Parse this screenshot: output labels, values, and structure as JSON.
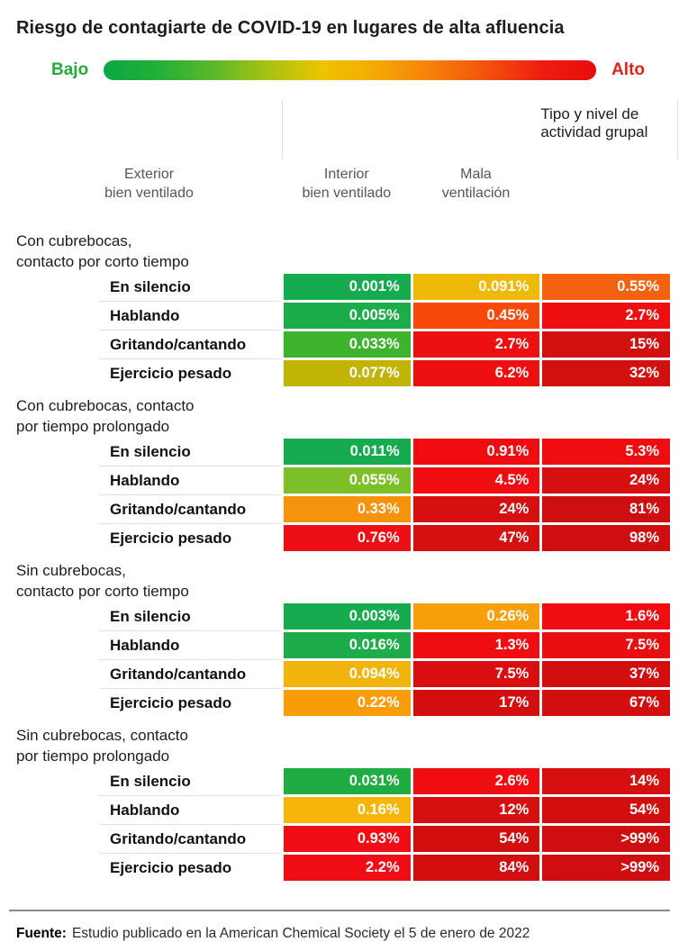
{
  "chart_data": {
    "type": "heatmap",
    "title": "Riesgo de contagiarte de COVID-19 en lugares de alta afluencia",
    "row_axis_label": "Tipo y nivel de actividad grupal",
    "columns": [
      "Exterior\nbien ventilado",
      "Interior\nbien ventilado",
      "Mala\nventilación"
    ],
    "legend": {
      "low_label": "Bajo",
      "high_label": "Alto",
      "low_color": "#23ab3c",
      "high_color": "#e0231a",
      "gradient": [
        "#0aa845",
        "#23af38",
        "#5bb82a",
        "#a8c213",
        "#eec400",
        "#f4a904",
        "#f57f0a",
        "#f3520d",
        "#ee1d10",
        "#e60d0d"
      ]
    },
    "sections": [
      {
        "header_lines": [
          "Con cubrebocas,",
          "contacto por corto tiempo"
        ],
        "rows": [
          {
            "label": "En silencio",
            "values": [
              "0.001%",
              "0.091%",
              "0.55%"
            ],
            "colors": [
              "#17ab4f",
              "#efba07",
              "#f4610f"
            ]
          },
          {
            "label": "Hablando",
            "values": [
              "0.005%",
              "0.45%",
              "2.7%"
            ],
            "colors": [
              "#1cac49",
              "#f8490b",
              "#ee1010"
            ]
          },
          {
            "label": "Gritando/cantando",
            "values": [
              "0.033%",
              "2.7%",
              "15%"
            ],
            "colors": [
              "#3eb42e",
              "#ee0f10",
              "#d31010"
            ]
          },
          {
            "label": "Ejercicio pesado",
            "values": [
              "0.077%",
              "6.2%",
              "32%"
            ],
            "colors": [
              "#c2b307",
              "#ee0f10",
              "#d31010"
            ]
          }
        ]
      },
      {
        "header_lines": [
          "Con cubrebocas, contacto",
          "por tiempo prolongado"
        ],
        "rows": [
          {
            "label": "En silencio",
            "values": [
              "0.011%",
              "0.91%",
              "5.3%"
            ],
            "colors": [
              "#17ab4f",
              "#f00d12",
              "#f00d12"
            ]
          },
          {
            "label": "Hablando",
            "values": [
              "0.055%",
              "4.5%",
              "24%"
            ],
            "colors": [
              "#7cbf28",
              "#f00d12",
              "#d60f10"
            ]
          },
          {
            "label": "Gritando/cantando",
            "values": [
              "0.33%",
              "24%",
              "81%"
            ],
            "colors": [
              "#f6930c",
              "#d60f10",
              "#cf0e0f"
            ]
          },
          {
            "label": "Ejercicio pesado",
            "values": [
              "0.76%",
              "47%",
              "98%"
            ],
            "colors": [
              "#ee0f16",
              "#d60f10",
              "#cf0e0f"
            ]
          }
        ]
      },
      {
        "header_lines": [
          "Sin cubrebocas,",
          "contacto por corto tiempo"
        ],
        "rows": [
          {
            "label": "En silencio",
            "values": [
              "0.003%",
              "0.26%",
              "1.6%"
            ],
            "colors": [
              "#17ab4f",
              "#f89f0b",
              "#f00d12"
            ]
          },
          {
            "label": "Hablando",
            "values": [
              "0.016%",
              "1.3%",
              "7.5%"
            ],
            "colors": [
              "#1cac49",
              "#f00d12",
              "#e90e11"
            ]
          },
          {
            "label": "Gritando/cantando",
            "values": [
              "0.094%",
              "7.5%",
              "37%"
            ],
            "colors": [
              "#f0b40a",
              "#da0e10",
              "#d30e0f"
            ]
          },
          {
            "label": "Ejercicio pesado",
            "values": [
              "0.22%",
              "17%",
              "67%"
            ],
            "colors": [
              "#f89d08",
              "#d30e0f",
              "#d30e0f"
            ]
          }
        ]
      },
      {
        "header_lines": [
          "Sin cubrebocas, contacto",
          "por tiempo prolongado"
        ],
        "rows": [
          {
            "label": "En silencio",
            "values": [
              "0.031%",
              "2.6%",
              "14%"
            ],
            "colors": [
              "#1fad43",
              "#f00d12",
              "#d60f10"
            ]
          },
          {
            "label": "Hablando",
            "values": [
              "0.16%",
              "12%",
              "54%"
            ],
            "colors": [
              "#f8b509",
              "#d60f10",
              "#d30e0f"
            ]
          },
          {
            "label": "Gritando/cantando",
            "values": [
              "0.93%",
              "54%",
              ">99%"
            ],
            "colors": [
              "#f00d15",
              "#d30e0f",
              "#cf0e0f"
            ]
          },
          {
            "label": "Ejercicio pesado",
            "values": [
              "2.2%",
              "84%",
              ">99%"
            ],
            "colors": [
              "#f00d15",
              "#d30e0f",
              "#cf0e0f"
            ]
          }
        ]
      }
    ]
  },
  "footer": {
    "prefix": "Fuente:",
    "text": "Estudio publicado en la American Chemical Society el 5 de enero de 2022"
  }
}
